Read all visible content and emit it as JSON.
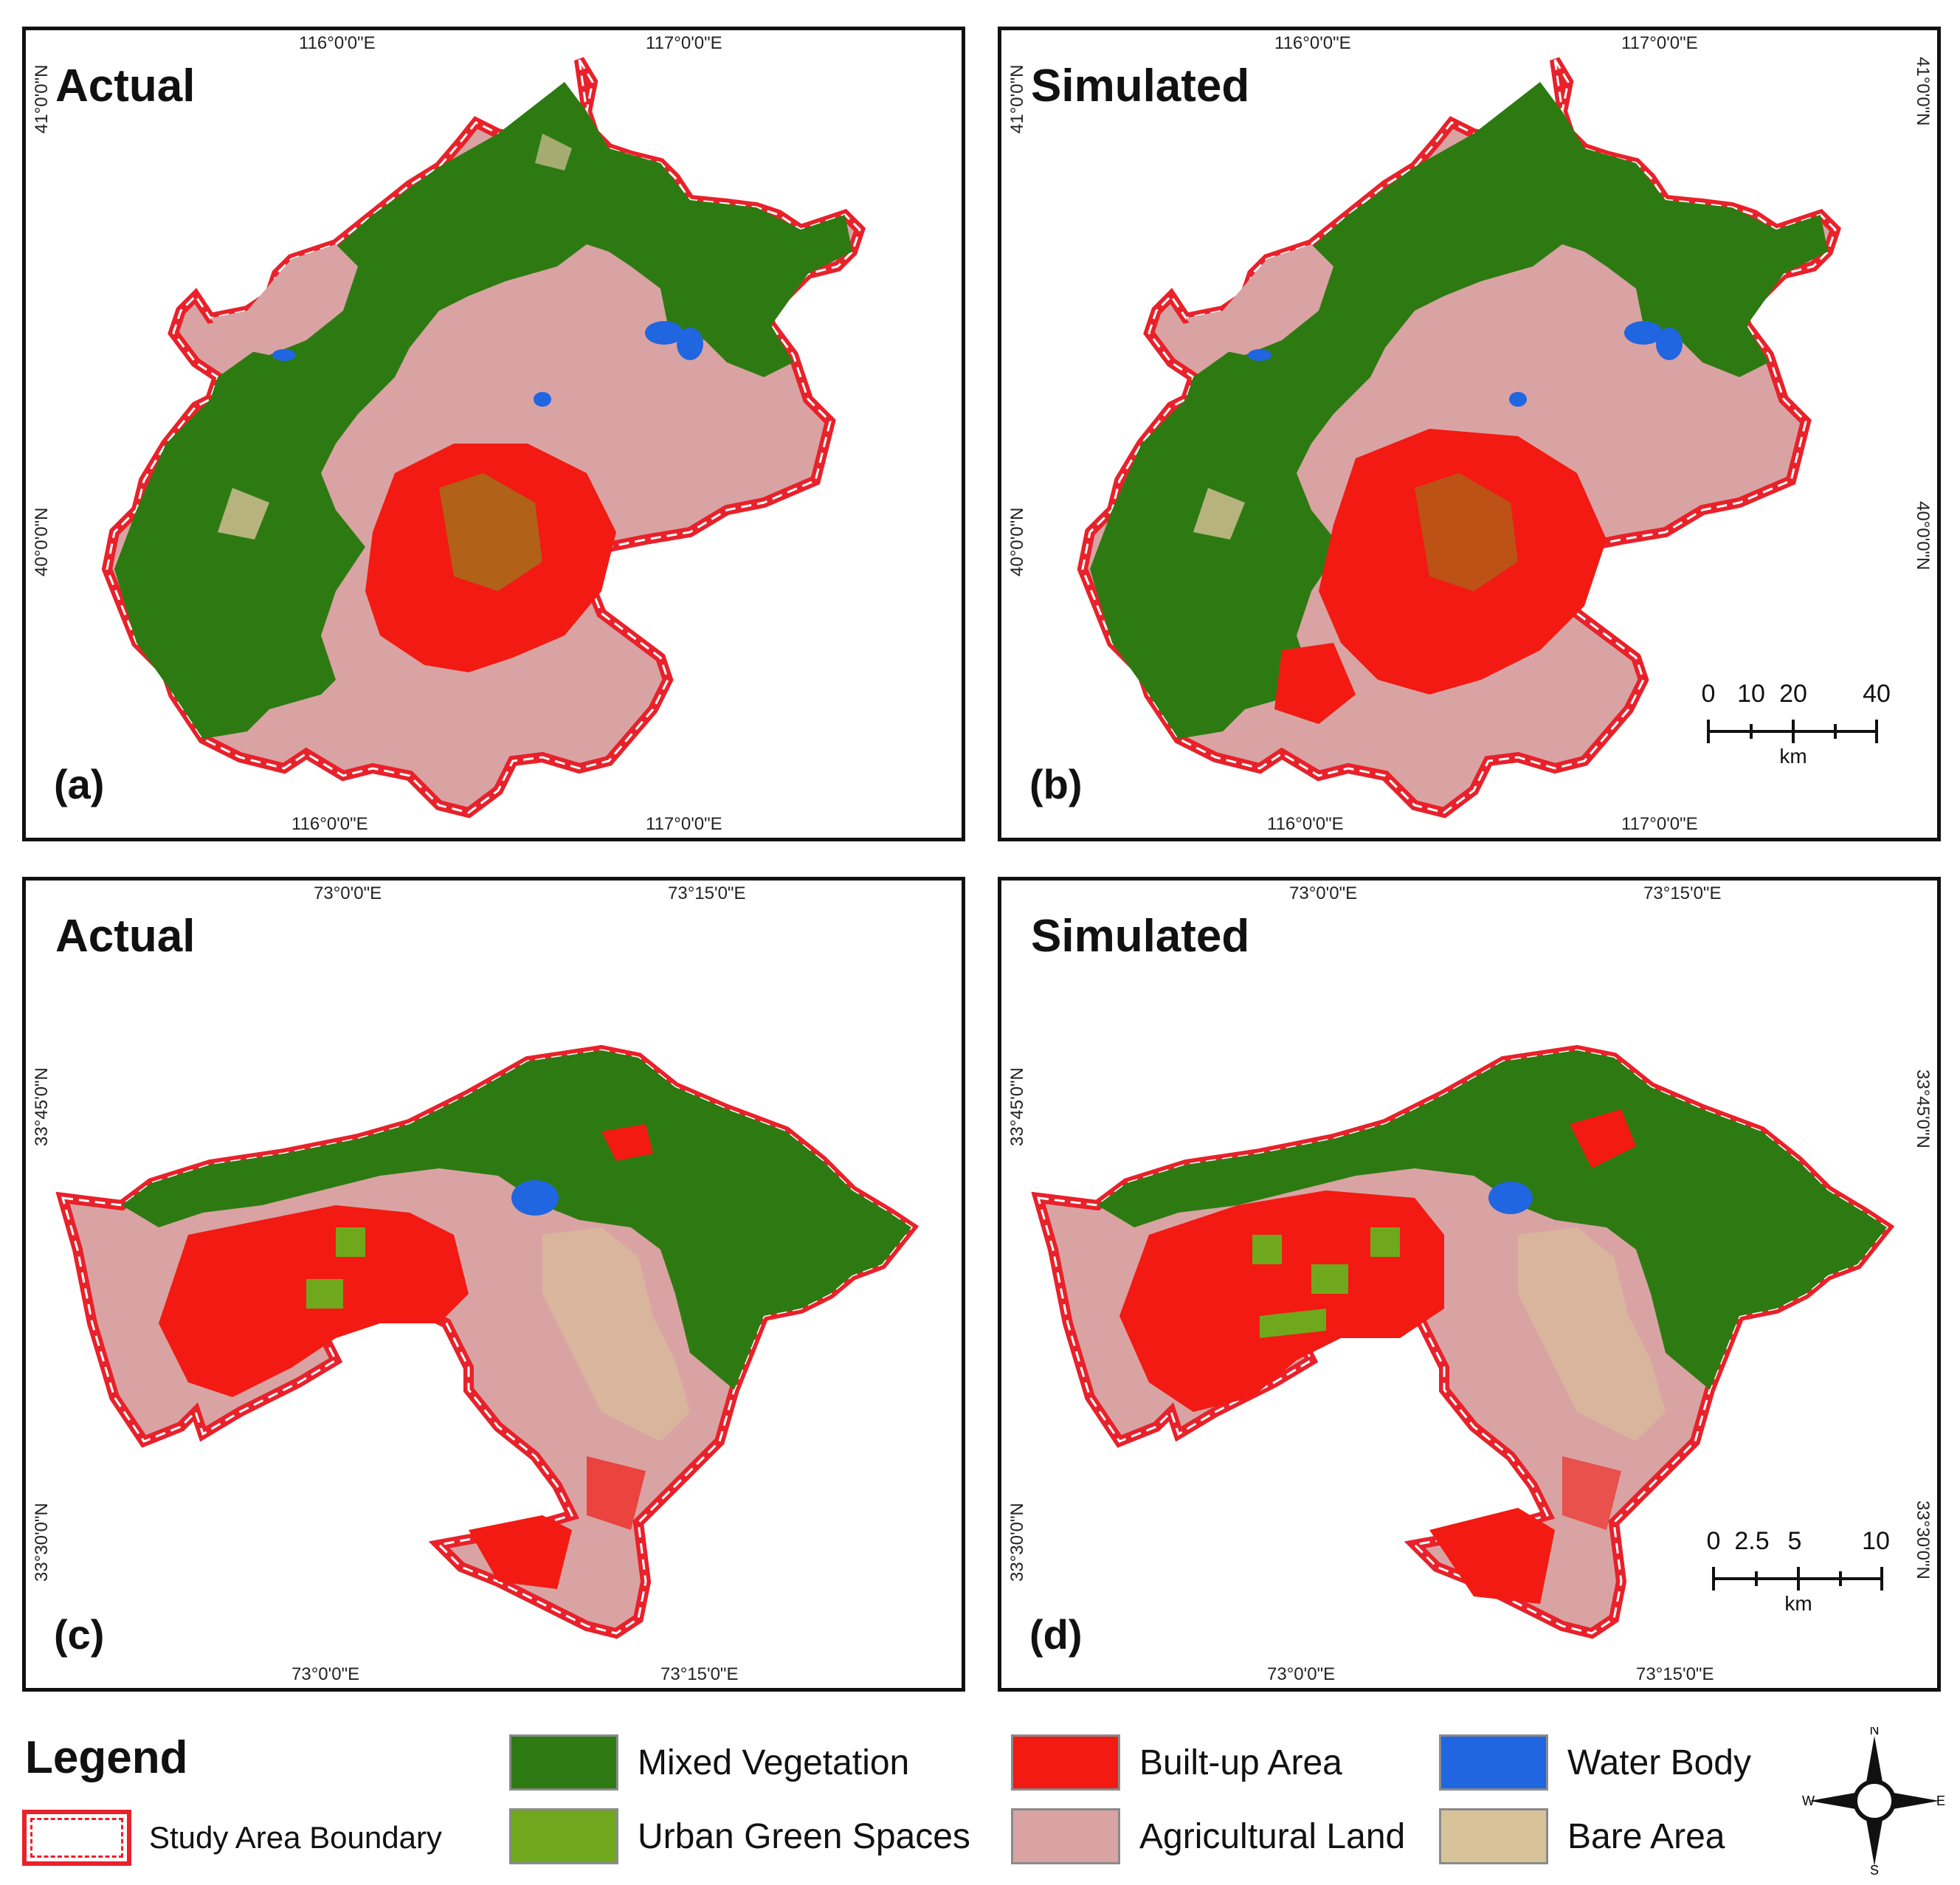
{
  "colors": {
    "mixed_vegetation": "#2e7a12",
    "urban_green_spaces": "#6fa81d",
    "built_up_area": "#f21a12",
    "agricultural_land": "#d9a3a3",
    "water_body": "#1f66e0",
    "bare_area": "#d8c29a",
    "boundary": "#e8212a"
  },
  "panels": {
    "a": {
      "title": "Actual",
      "label": "(a)",
      "top_lons": [
        "116°0'0\"E",
        "117°0'0\"E"
      ],
      "bottom_lons": [
        "116°0'0\"E",
        "117°0'0\"E"
      ],
      "left_lats": [
        "41°0'0\"N",
        "40°0'0\"N"
      ],
      "right_lats": []
    },
    "b": {
      "title": "Simulated",
      "label": "(b)",
      "top_lons": [
        "116°0'0\"E",
        "117°0'0\"E"
      ],
      "bottom_lons": [
        "116°0'0\"E",
        "117°0'0\"E"
      ],
      "left_lats": [
        "41°0'0\"N",
        "40°0'0\"N"
      ],
      "right_lats": [
        "41°0'0\"N",
        "40°0'0\"N"
      ],
      "scale": {
        "ticks": [
          "0",
          "10",
          "20",
          "40"
        ],
        "unit": "km"
      }
    },
    "c": {
      "title": "Actual",
      "label": "(c)",
      "top_lons": [
        "73°0'0\"E",
        "73°15'0\"E"
      ],
      "bottom_lons": [
        "73°0'0\"E",
        "73°15'0\"E"
      ],
      "left_lats": [
        "33°45'0\"N",
        "33°30'0\"N"
      ],
      "right_lats": []
    },
    "d": {
      "title": "Simulated",
      "label": "(d)",
      "top_lons": [
        "73°0'0\"E",
        "73°15'0\"E"
      ],
      "bottom_lons": [
        "73°0'0\"E",
        "73°15'0\"E"
      ],
      "left_lats": [
        "33°45'0\"N",
        "33°30'0\"N"
      ],
      "right_lats": [
        "33°45'0\"N",
        "33°30'0\"N"
      ],
      "scale": {
        "ticks": [
          "0",
          "2.5",
          "5",
          "10"
        ],
        "unit": "km"
      }
    }
  },
  "legend": {
    "title": "Legend",
    "boundary_label": "Study Area Boundary",
    "items": {
      "mixed_vegetation": "Mixed Vegetation",
      "urban_green_spaces": "Urban Green Spaces",
      "built_up_area": "Built-up Area",
      "agricultural_land": "Agricultural Land",
      "water_body": "Water Body",
      "bare_area": "Bare Area"
    },
    "compass": {
      "n": "N",
      "s": "S",
      "e": "E",
      "w": "W"
    }
  }
}
